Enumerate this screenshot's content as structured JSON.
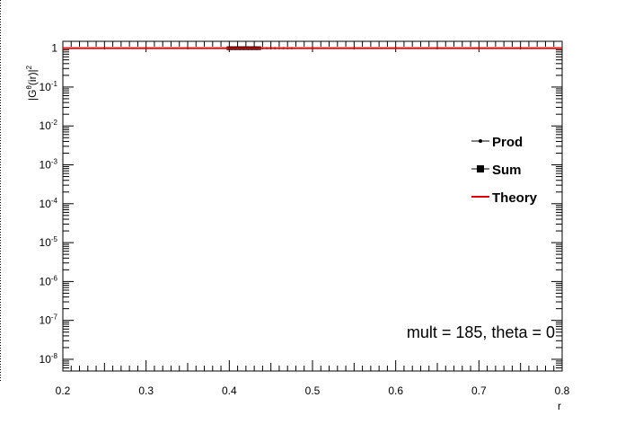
{
  "chart_data": {
    "type": "line",
    "title": "",
    "xlabel": "r",
    "ylabel": "|G^{θ}(ir)|^{2}",
    "ylabel_parts": {
      "base": "|G",
      "sup": "θ",
      "mid": "(ir)|",
      "sup2": "2"
    },
    "xlim": [
      0.2,
      0.8
    ],
    "ylim": [
      5e-09,
      1.5
    ],
    "yscale": "log",
    "x_ticks": [
      0.2,
      0.3,
      0.4,
      0.5,
      0.6,
      0.7,
      0.8
    ],
    "x_tick_labels": [
      "0.2",
      "0.3",
      "0.4",
      "0.5",
      "0.6",
      "0.7",
      "0.8"
    ],
    "y_ticks": [
      {
        "value": 1,
        "base": "1",
        "exp": ""
      },
      {
        "value": 0.1,
        "base": "10",
        "exp": "-1"
      },
      {
        "value": 0.01,
        "base": "10",
        "exp": "-2"
      },
      {
        "value": 0.001,
        "base": "10",
        "exp": "-3"
      },
      {
        "value": 0.0001,
        "base": "10",
        "exp": "-4"
      },
      {
        "value": 1e-05,
        "base": "10",
        "exp": "-5"
      },
      {
        "value": 1e-06,
        "base": "10",
        "exp": "-6"
      },
      {
        "value": 1e-07,
        "base": "10",
        "exp": "-7"
      },
      {
        "value": 1e-08,
        "base": "10",
        "exp": "-8"
      }
    ],
    "grid": false,
    "legend_position": "right",
    "series": [
      {
        "name": "Prod",
        "marker": "dot",
        "color": "#000000",
        "x": [
          0.44,
          0.445,
          0.45,
          0.455,
          0.46,
          0.465,
          0.47,
          0.475
        ],
        "y": [
          1,
          1,
          1,
          1,
          1,
          1,
          1,
          1
        ]
      },
      {
        "name": "Sum",
        "marker": "square",
        "color": "#000000",
        "x": [
          0.4,
          0.405,
          0.41,
          0.415,
          0.42,
          0.425,
          0.43,
          0.435
        ],
        "y": [
          1,
          1,
          1,
          1,
          1,
          1,
          1,
          1
        ]
      },
      {
        "name": "Theory",
        "marker": "none",
        "color": "#e00000",
        "x": [
          0.2,
          0.8
        ],
        "y": [
          1,
          1
        ]
      }
    ],
    "annotation": "mult = 185, theta = 0"
  }
}
